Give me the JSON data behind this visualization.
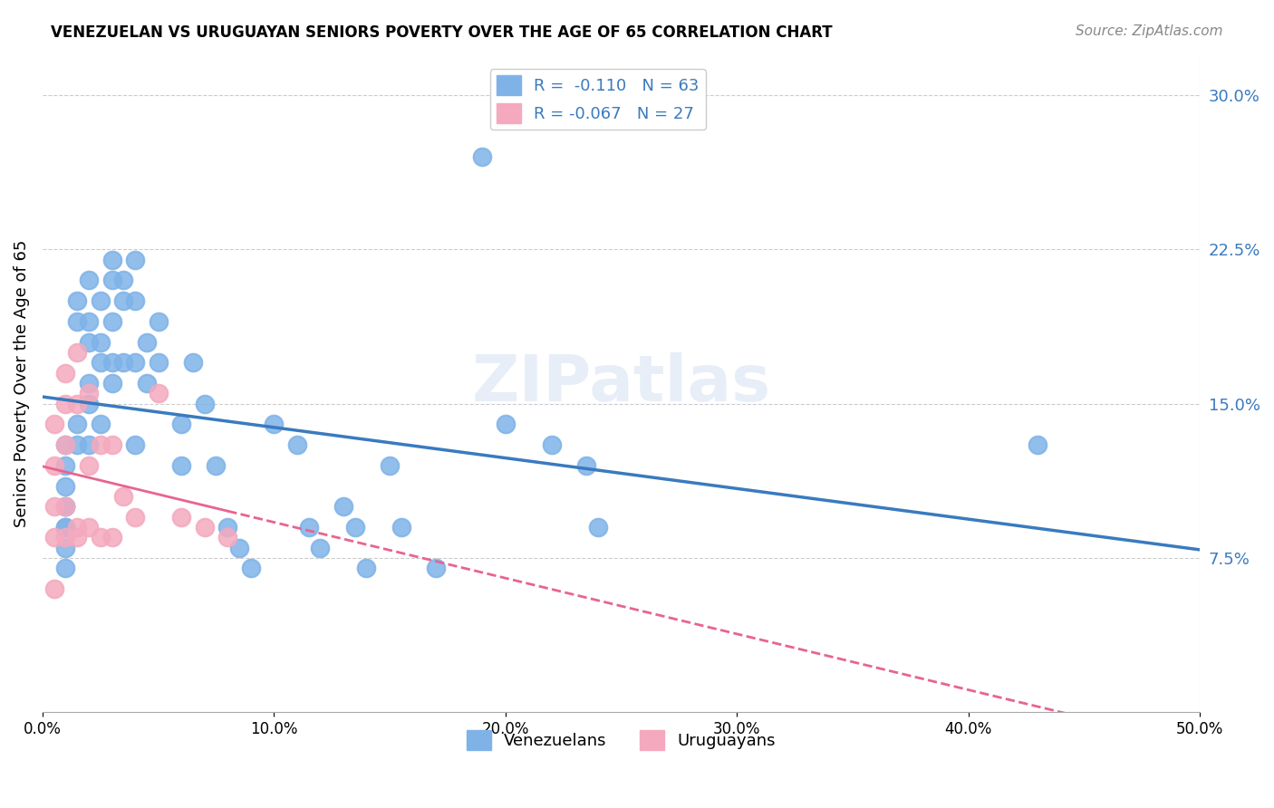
{
  "title": "VENEZUELAN VS URUGUAYAN SENIORS POVERTY OVER THE AGE OF 65 CORRELATION CHART",
  "source": "Source: ZipAtlas.com",
  "xlabel": "",
  "ylabel": "Seniors Poverty Over the Age of 65",
  "xlim": [
    0.0,
    0.5
  ],
  "ylim": [
    0.0,
    0.32
  ],
  "xticks": [
    0.0,
    0.1,
    0.2,
    0.3,
    0.4,
    0.5
  ],
  "xtick_labels": [
    "0.0%",
    "10.0%",
    "20.0%",
    "30.0%",
    "40.0%",
    "50.0%"
  ],
  "ytick_labels_right": [
    "7.5%",
    "15.0%",
    "22.5%",
    "30.0%"
  ],
  "ytick_vals_right": [
    0.075,
    0.15,
    0.225,
    0.3
  ],
  "venezuelan_color": "#7fb3e8",
  "uruguayan_color": "#f4a9be",
  "venezuelan_R": "-0.110",
  "venezuelan_N": "63",
  "uruguayan_R": "-0.067",
  "uruguayan_N": "27",
  "watermark": "ZIPatlas",
  "legend_loc": "upper right",
  "venezuelan_x": [
    0.01,
    0.01,
    0.01,
    0.01,
    0.01,
    0.01,
    0.01,
    0.01,
    0.01,
    0.015,
    0.015,
    0.015,
    0.015,
    0.02,
    0.02,
    0.02,
    0.02,
    0.02,
    0.02,
    0.025,
    0.025,
    0.025,
    0.025,
    0.03,
    0.03,
    0.03,
    0.03,
    0.03,
    0.035,
    0.035,
    0.035,
    0.04,
    0.04,
    0.04,
    0.04,
    0.045,
    0.045,
    0.05,
    0.05,
    0.06,
    0.06,
    0.065,
    0.07,
    0.075,
    0.08,
    0.085,
    0.09,
    0.1,
    0.11,
    0.115,
    0.12,
    0.13,
    0.135,
    0.14,
    0.15,
    0.155,
    0.17,
    0.19,
    0.2,
    0.22,
    0.235,
    0.24,
    0.43
  ],
  "venezuelan_y": [
    0.13,
    0.12,
    0.11,
    0.1,
    0.1,
    0.09,
    0.09,
    0.08,
    0.07,
    0.2,
    0.19,
    0.14,
    0.13,
    0.21,
    0.19,
    0.18,
    0.16,
    0.15,
    0.13,
    0.2,
    0.18,
    0.17,
    0.14,
    0.22,
    0.21,
    0.19,
    0.17,
    0.16,
    0.21,
    0.2,
    0.17,
    0.22,
    0.2,
    0.17,
    0.13,
    0.18,
    0.16,
    0.19,
    0.17,
    0.14,
    0.12,
    0.17,
    0.15,
    0.12,
    0.09,
    0.08,
    0.07,
    0.14,
    0.13,
    0.09,
    0.08,
    0.1,
    0.09,
    0.07,
    0.12,
    0.09,
    0.07,
    0.27,
    0.14,
    0.13,
    0.12,
    0.09,
    0.13
  ],
  "uruguayan_x": [
    0.005,
    0.005,
    0.005,
    0.005,
    0.005,
    0.01,
    0.01,
    0.01,
    0.01,
    0.01,
    0.015,
    0.015,
    0.015,
    0.015,
    0.02,
    0.02,
    0.02,
    0.025,
    0.025,
    0.03,
    0.03,
    0.035,
    0.04,
    0.05,
    0.06,
    0.07,
    0.08
  ],
  "uruguayan_y": [
    0.14,
    0.12,
    0.1,
    0.085,
    0.06,
    0.165,
    0.15,
    0.13,
    0.1,
    0.085,
    0.175,
    0.15,
    0.09,
    0.085,
    0.155,
    0.12,
    0.09,
    0.13,
    0.085,
    0.13,
    0.085,
    0.105,
    0.095,
    0.155,
    0.095,
    0.09,
    0.085
  ]
}
